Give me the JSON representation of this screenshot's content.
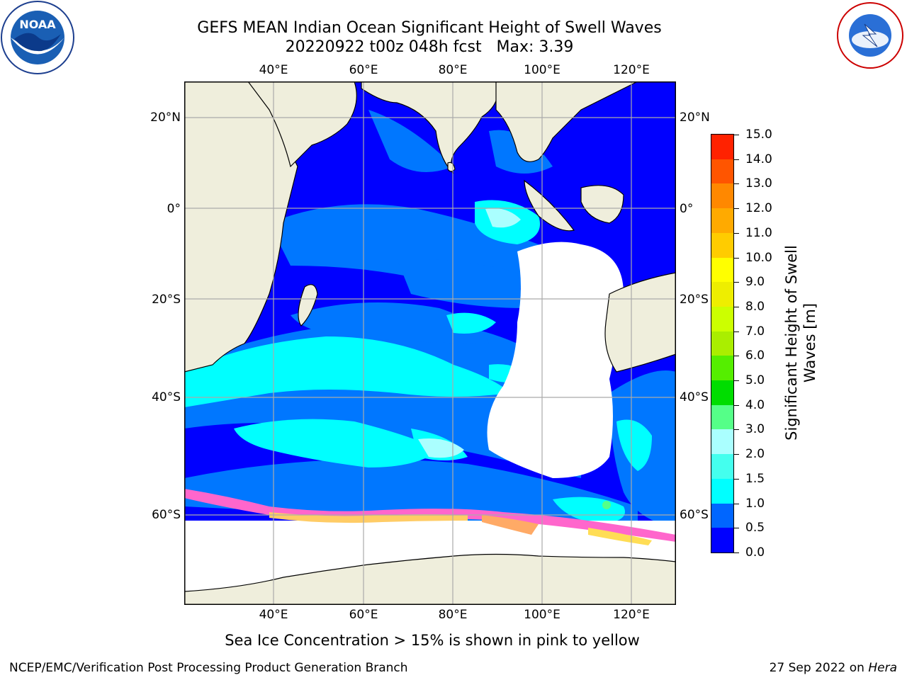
{
  "title": {
    "line1": "GEFS MEAN Indian Ocean Significant Height of Swell Waves",
    "line2": "20220922 t00z 048h fcst   Max: 3.39"
  },
  "map": {
    "lon_range": [
      20,
      130
    ],
    "lat_range": [
      -78,
      27
    ],
    "lon_ticks": [
      "40°E",
      "60°E",
      "80°E",
      "100°E",
      "120°E"
    ],
    "lat_ticks": [
      "20°N",
      "0°",
      "20°S",
      "40°S",
      "60°S"
    ],
    "grid": true,
    "colors": {
      "land": "#efeedc",
      "ocean_low": "#0000ff",
      "ice": "#ff66cc",
      "frame": "#000000"
    }
  },
  "colorbar": {
    "label": "Significant Height of Swell Waves [m]",
    "ticks": [
      "0.0",
      "0.5",
      "1.0",
      "1.5",
      "2.0",
      "3.0",
      "4.0",
      "5.0",
      "6.0",
      "7.0",
      "8.0",
      "9.0",
      "10.0",
      "11.0",
      "12.0",
      "13.0",
      "14.0",
      "15.0"
    ],
    "colors": [
      "#0000ff",
      "#0066ff",
      "#00ffff",
      "#44ffee",
      "#aaffff",
      "#55ff88",
      "#00dd00",
      "#55ee00",
      "#aaee00",
      "#ccff00",
      "#eeee00",
      "#ffff00",
      "#ffcc00",
      "#ffaa00",
      "#ff8800",
      "#ff5500",
      "#ff2200",
      "#ff0000"
    ]
  },
  "footnote": "Sea Ice Concentration > 15% is shown in pink to yellow",
  "credit": "NCEP/EMC/Verification Post Processing Product Generation Branch",
  "date_stamp": {
    "date": "27 Sep 2022 on ",
    "host": "Hera"
  },
  "logos": {
    "left": "noaa-logo",
    "right": "nws-logo"
  }
}
